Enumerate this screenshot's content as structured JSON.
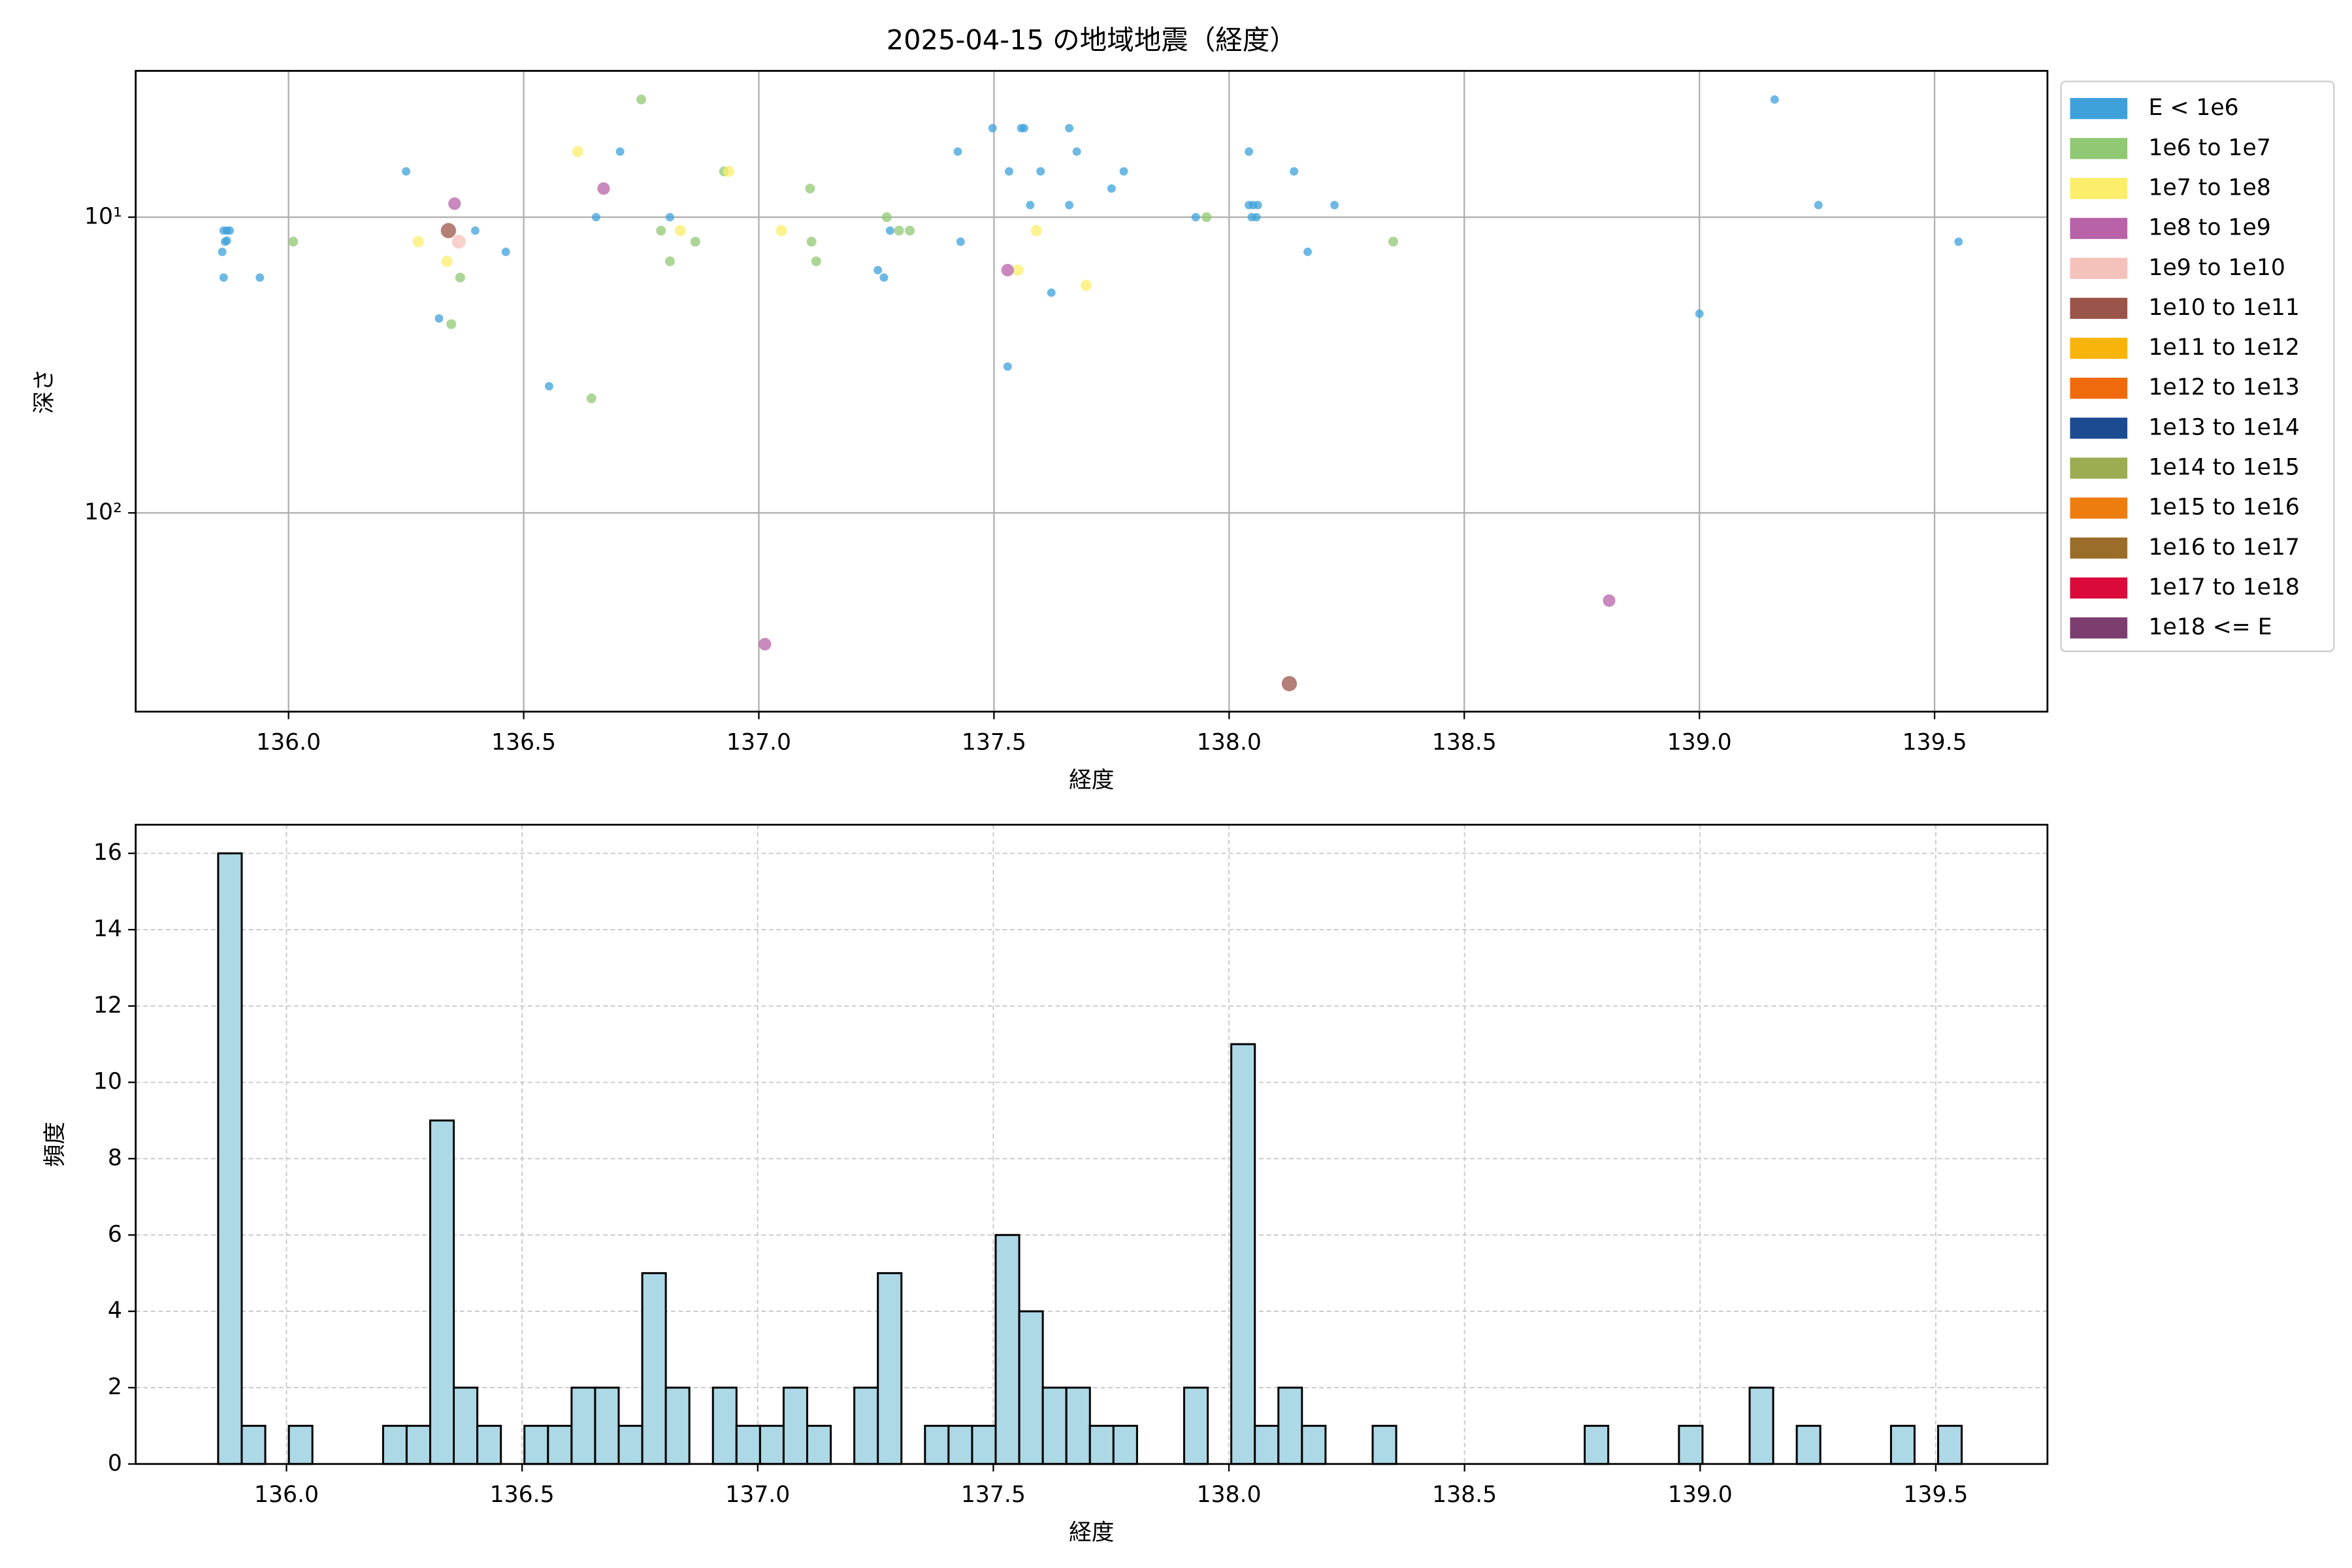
{
  "chart_data": [
    {
      "type": "scatter",
      "title": "2025-04-15 の地域地震（経度）",
      "xlabel": "経度",
      "ylabel": "深さ",
      "xlim": [
        135.675,
        139.74
      ],
      "xticks": [
        {
          "value": 136.0,
          "label": "136.0"
        },
        {
          "value": 136.5,
          "label": "136.5"
        },
        {
          "value": 137.0,
          "label": "137.0"
        },
        {
          "value": 137.5,
          "label": "137.5"
        },
        {
          "value": 138.0,
          "label": "138.0"
        },
        {
          "value": 138.5,
          "label": "138.5"
        },
        {
          "value": 139.0,
          "label": "139.0"
        },
        {
          "value": 139.5,
          "label": "139.5"
        }
      ],
      "ylim": [
        470,
        3.2
      ],
      "ylog": true,
      "yticks": [
        {
          "value": 10,
          "label": "10¹"
        },
        {
          "value": 100,
          "label": "10²"
        }
      ],
      "grid": true,
      "legend": "outside-upper-right",
      "series": [
        {
          "name": "E < 1e6",
          "color": "#3ea1db",
          "x": [
            135.859,
            135.862,
            135.869,
            135.875,
            135.865,
            135.869,
            135.862,
            135.939,
            136.25,
            136.32,
            136.397,
            136.462,
            136.554,
            136.654,
            136.705,
            136.811,
            137.253,
            137.266,
            137.279,
            137.423,
            137.429,
            137.497,
            137.532,
            137.558,
            137.564,
            137.577,
            137.599,
            137.529,
            137.622,
            137.66,
            137.66,
            137.676,
            137.75,
            137.776,
            137.929,
            138.042,
            138.042,
            138.051,
            138.061,
            138.048,
            138.058,
            138.138,
            138.167,
            138.224,
            139.0,
            139.16,
            139.253,
            139.551
          ],
          "values": [
            13.1,
            11.1,
            11.1,
            11.1,
            12.1,
            12.0,
            16.0,
            16.0,
            7.0,
            22,
            11.1,
            13.1,
            37.3,
            10,
            6.0,
            10,
            15.1,
            16.0,
            11.1,
            6.0,
            12.1,
            5.0,
            7.0,
            5.0,
            5.0,
            9.1,
            7.0,
            32,
            18,
            5.0,
            9.1,
            6.0,
            8.0,
            7.0,
            10,
            6.0,
            9.1,
            9.1,
            9.1,
            10,
            10,
            7.0,
            13.1,
            9.1,
            21.2,
            4.0,
            9.1,
            12.1
          ]
        },
        {
          "name": "1e6 to 1e7",
          "color": "#91c873",
          "x": [
            136.01,
            136.346,
            136.365,
            136.644,
            136.75,
            136.792,
            136.811,
            136.865,
            136.926,
            137.109,
            137.112,
            137.122,
            137.272,
            137.298,
            137.321,
            137.952,
            138.349
          ],
          "values": [
            12.1,
            23,
            16.0,
            41,
            4.0,
            11.1,
            14.1,
            12.1,
            7.0,
            8.0,
            12.1,
            14.1,
            10,
            11.1,
            11.1,
            10,
            12.1
          ]
        },
        {
          "name": "1e7 to 1e8",
          "color": "#fced6b",
          "x": [
            136.276,
            136.337,
            136.615,
            136.833,
            136.936,
            137.048,
            137.551,
            137.59,
            137.696
          ],
          "values": [
            12.1,
            14.1,
            6.0,
            11.1,
            7.0,
            11.1,
            15.1,
            11.1,
            17
          ]
        },
        {
          "name": "1e8 to 1e9",
          "color": "#b862a8",
          "x": [
            136.353,
            136.67,
            137.013,
            137.529,
            138.808
          ],
          "values": [
            9.0,
            8.0,
            278,
            15.1,
            198
          ]
        },
        {
          "name": "1e9 to 1e10",
          "color": "#f5c2bb",
          "x": [
            136.362
          ],
          "values": [
            12.1
          ]
        },
        {
          "name": "1e10 to 1e11",
          "color": "#9a5449",
          "x": [
            136.34,
            138.128
          ],
          "values": [
            11.1,
            378
          ]
        },
        {
          "name": "1e11 to 1e12",
          "color": "#f9b40b",
          "x": [],
          "values": []
        },
        {
          "name": "1e12 to 1e13",
          "color": "#ef6a0c",
          "x": [],
          "values": []
        },
        {
          "name": "1e13 to 1e14",
          "color": "#1c4b91",
          "x": [],
          "values": []
        },
        {
          "name": "1e14 to 1e15",
          "color": "#9bac52",
          "x": [],
          "values": []
        },
        {
          "name": "1e15 to 1e16",
          "color": "#ee7d10",
          "x": [],
          "values": []
        },
        {
          "name": "1e16 to 1e17",
          "color": "#9a6e2a",
          "x": [],
          "values": []
        },
        {
          "name": "1e17 to 1e18",
          "color": "#dc0a3b",
          "x": [],
          "values": []
        },
        {
          "name": "1e18 <= E",
          "color": "#7b3e6e",
          "x": [],
          "values": []
        }
      ]
    },
    {
      "type": "histogram",
      "xlabel": "経度",
      "ylabel": "頻度",
      "color": "#add8e6",
      "edge_color": "#000000",
      "xlim": [
        135.68,
        139.737
      ],
      "xticks": [
        {
          "value": 136.0,
          "label": "136.0"
        },
        {
          "value": 136.5,
          "label": "136.5"
        },
        {
          "value": 137.0,
          "label": "137.0"
        },
        {
          "value": 137.5,
          "label": "137.5"
        },
        {
          "value": 138.0,
          "label": "138.0"
        },
        {
          "value": 138.5,
          "label": "138.5"
        },
        {
          "value": 139.0,
          "label": "139.0"
        },
        {
          "value": 139.5,
          "label": "139.5"
        }
      ],
      "ylim": [
        0,
        16.75
      ],
      "yticks": [
        0,
        2,
        4,
        6,
        8,
        10,
        12,
        14,
        16
      ],
      "grid": true,
      "bins": [
        135.855,
        135.905,
        135.955,
        136.005,
        136.055,
        136.105,
        136.155,
        136.205,
        136.255,
        136.305,
        136.355,
        136.405,
        136.455,
        136.505,
        136.555,
        136.605,
        136.655,
        136.705,
        136.755,
        136.805,
        136.855,
        136.905,
        136.955,
        137.005,
        137.055,
        137.105,
        137.155,
        137.205,
        137.255,
        137.305,
        137.355,
        137.405,
        137.455,
        137.505,
        137.555,
        137.605,
        137.655,
        137.705,
        137.755,
        137.805,
        137.855,
        137.905,
        137.955,
        138.005,
        138.055,
        138.105,
        138.155,
        138.205,
        138.255,
        138.305,
        138.355,
        138.405,
        138.455,
        138.505,
        138.555,
        138.605,
        138.655,
        138.705,
        138.755,
        138.805,
        138.855,
        138.905,
        138.955,
        139.005,
        139.055,
        139.105,
        139.155,
        139.205,
        139.255,
        139.305,
        139.355,
        139.405,
        139.455,
        139.505,
        139.555
      ],
      "counts": [
        16,
        1,
        0,
        1,
        0,
        0,
        0,
        1,
        1,
        9,
        2,
        1,
        0,
        1,
        1,
        2,
        2,
        1,
        5,
        2,
        0,
        2,
        1,
        1,
        2,
        1,
        0,
        2,
        5,
        0,
        1,
        1,
        1,
        6,
        4,
        2,
        2,
        1,
        1,
        0,
        0,
        2,
        0,
        11,
        1,
        2,
        1,
        0,
        0,
        1,
        0,
        0,
        0,
        0,
        0,
        0,
        0,
        0,
        1,
        0,
        0,
        0,
        1,
        0,
        0,
        2,
        0,
        1,
        0,
        0,
        0,
        1,
        0,
        1
      ]
    }
  ]
}
